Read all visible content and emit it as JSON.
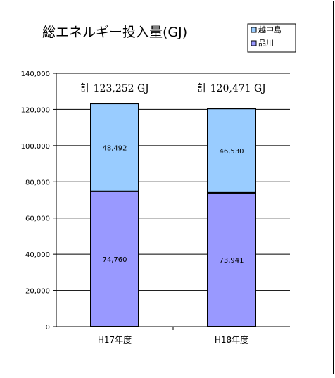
{
  "chart_data": {
    "type": "bar",
    "stacked": true,
    "title": "総エネルギー投入量(GJ)",
    "categories": [
      "H17年度",
      "H18年度"
    ],
    "series": [
      {
        "name": "品川",
        "values": [
          74760,
          73941
        ],
        "value_labels": [
          "74,760",
          "73,941"
        ],
        "color": "#9999ff"
      },
      {
        "name": "越中島",
        "values": [
          48492,
          46530
        ],
        "value_labels": [
          "48,492",
          "46,530"
        ],
        "color": "#99ccff"
      }
    ],
    "totals": [
      "計 123,252 GJ",
      "計 120,471 GJ"
    ],
    "ylim": [
      0,
      140000
    ],
    "yticks": [
      "0",
      "20,000",
      "40,000",
      "60,000",
      "80,000",
      "100,000",
      "120,000",
      "140,000"
    ],
    "grid": true,
    "legend_position": "top-right"
  }
}
